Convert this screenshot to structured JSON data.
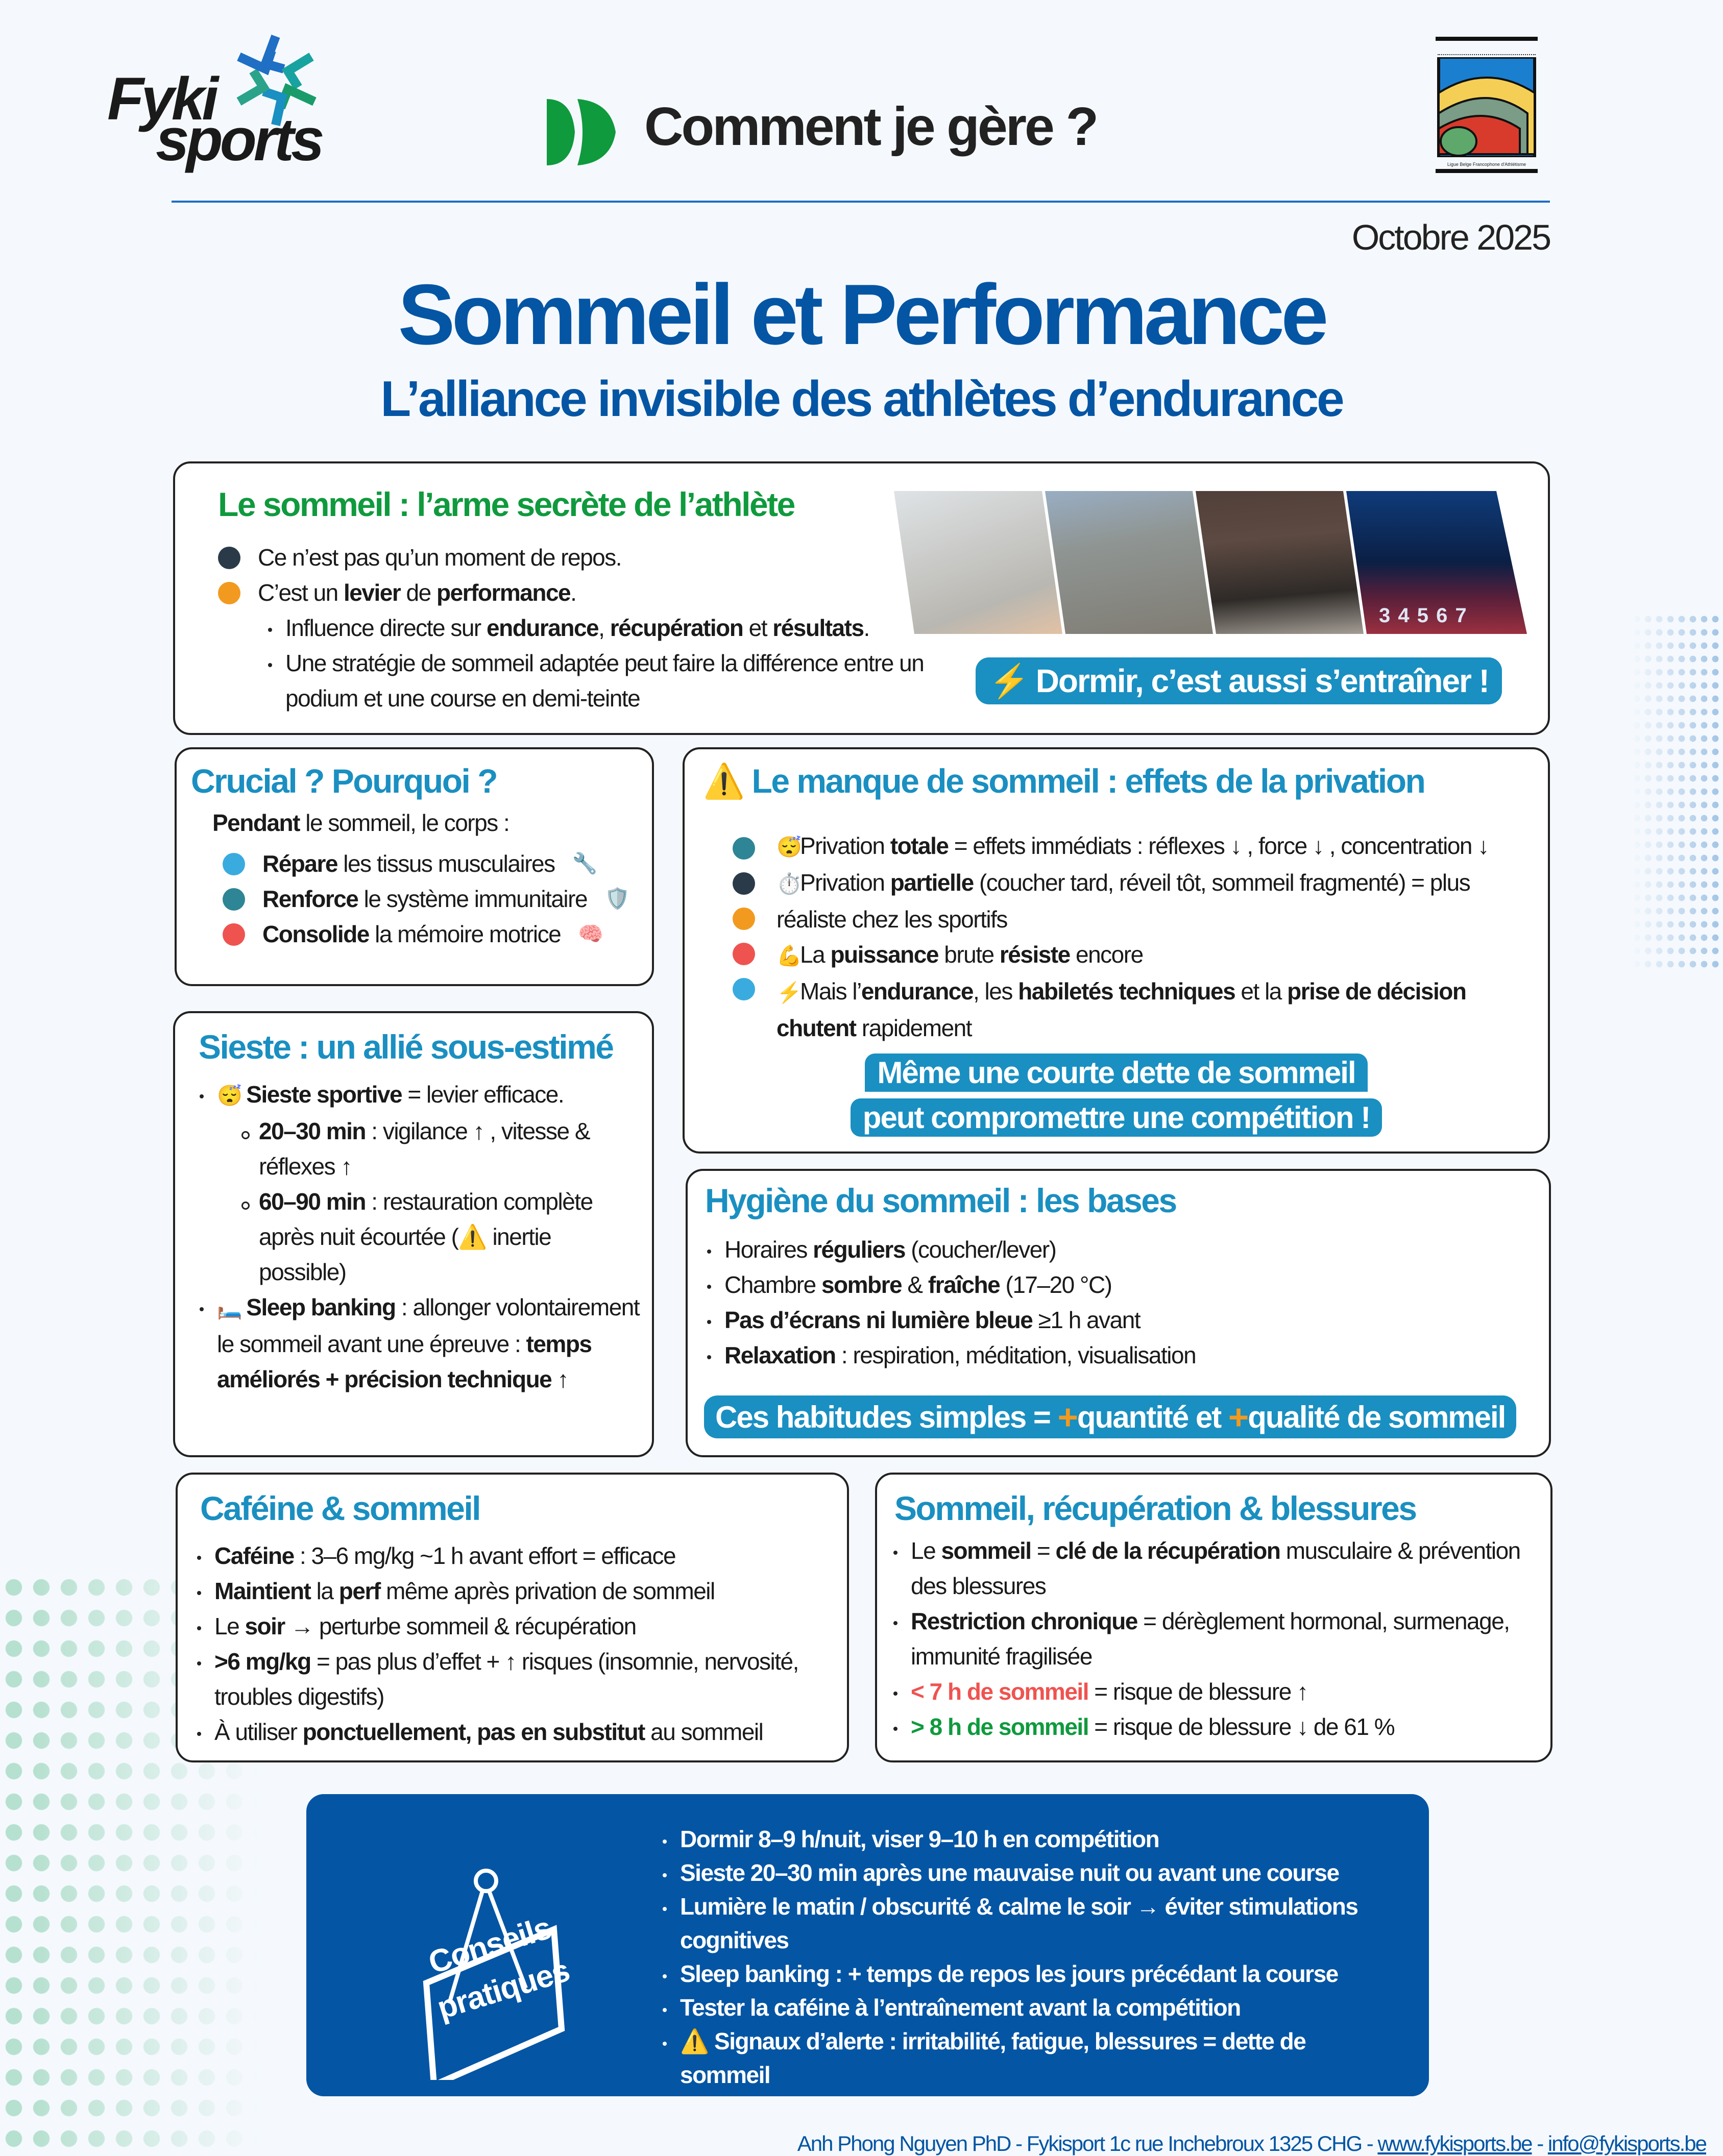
{
  "colors": {
    "title": "#0455a4",
    "heading": "#1a8fc1",
    "green": "#0f9a3d",
    "callout": "#1a8fc1",
    "advice_bg": "#0455a4",
    "dark": "#2b3a48",
    "orange": "#f29a1f",
    "teal": "#2e8595",
    "sky": "#3aabdf",
    "red": "#ef5350",
    "plus": "#f29a1f"
  },
  "header": {
    "logo_line1": "Fyki",
    "logo_line2": "sports",
    "tagline": "Comment je gère ?",
    "partner_logo_caption": "Ligue Belge Francophone d'Athlétisme",
    "date": "Octobre 2025"
  },
  "title": "Sommeil et Performance",
  "subtitle": "L’alliance invisible des athlètes d’endurance",
  "intro": {
    "title": "Le sommeil : l’arme secrète de l’athlète",
    "bullets": [
      [
        {
          "t": "Ce n’est pas qu’un moment de repos."
        }
      ],
      [
        {
          "t": "C’est un "
        },
        {
          "t": "levier",
          "b": true
        },
        {
          "t": " de "
        },
        {
          "t": "performance",
          "b": true
        },
        {
          "t": "."
        }
      ]
    ],
    "sub": [
      [
        {
          "t": "Influence directe sur "
        },
        {
          "t": "endurance",
          "b": true
        },
        {
          "t": ", "
        },
        {
          "t": "récupération",
          "b": true
        },
        {
          "t": " et "
        },
        {
          "t": "résultats",
          "b": true
        },
        {
          "t": "."
        }
      ],
      [
        {
          "t": "Une stratégie de sommeil adaptée peut faire la différence entre un podium et une course en demi-teinte"
        }
      ]
    ],
    "callout_icon": "⚡",
    "callout": "Dormir, c’est aussi s’entraîner !",
    "photo_track_numbers": "3 4 5 6 7"
  },
  "crucial": {
    "title": "Crucial ? Pourquoi ?",
    "intro": [
      {
        "t": "Pendant",
        "b": true
      },
      {
        "t": " le sommeil, le corps :"
      }
    ],
    "items": [
      {
        "text": [
          {
            "t": "Répare",
            "b": true
          },
          {
            "t": " les tissus musculaires"
          }
        ],
        "emoji": "🔧"
      },
      {
        "text": [
          {
            "t": "Renforce",
            "b": true
          },
          {
            "t": " le système immunitaire"
          }
        ],
        "emoji": "🛡️"
      },
      {
        "text": [
          {
            "t": "Consolide",
            "b": true
          },
          {
            "t": " la mémoire motrice"
          }
        ],
        "emoji": "🧠"
      }
    ]
  },
  "privation": {
    "title_icon": "⚠️",
    "title": "Le manque de sommeil : effets de la privation",
    "items": [
      {
        "emoji": "😴",
        "text": [
          {
            "t": "Privation "
          },
          {
            "t": "totale",
            "b": true
          },
          {
            "t": " = effets immédiats : réflexes ↓ , force ↓ , concentration ↓"
          }
        ]
      },
      {
        "emoji": "⏱️",
        "text": [
          {
            "t": "Privation "
          },
          {
            "t": "partielle",
            "b": true
          },
          {
            "t": " (coucher tard, réveil tôt, sommeil fragmenté) = plus réaliste chez les sportifs"
          }
        ]
      },
      {
        "emoji": "💪",
        "text": [
          {
            "t": "La "
          },
          {
            "t": "puissance",
            "b": true
          },
          {
            "t": " brute "
          },
          {
            "t": "résiste",
            "b": true
          },
          {
            "t": " encore"
          }
        ]
      },
      {
        "emoji": "⚡",
        "text": [
          {
            "t": "Mais l’"
          },
          {
            "t": "endurance",
            "b": true
          },
          {
            "t": ", les "
          },
          {
            "t": "habiletés techniques",
            "b": true
          },
          {
            "t": " et la "
          },
          {
            "t": "prise de décision",
            "b": true
          },
          {
            "t": " "
          },
          {
            "t": "chutent",
            "b": true
          },
          {
            "t": " rapidement"
          }
        ]
      }
    ],
    "callout_line1": "Même une courte dette de sommeil",
    "callout_line2": "peut compromettre une compétition !"
  },
  "sieste": {
    "title": "Sieste : un allié sous-estimé",
    "items": [
      {
        "emoji": "😴",
        "text": [
          {
            "t": "Sieste sportive",
            "b": true
          },
          {
            "t": " = levier efficace."
          }
        ],
        "sub": [
          [
            {
              "t": "20–30 min",
              "b": true
            },
            {
              "t": " : vigilance ↑ , vitesse & réflexes ↑"
            }
          ],
          [
            {
              "t": "60–90 min",
              "b": true
            },
            {
              "t": " : restauration complète après nuit écourtée (⚠️ inertie possible)"
            }
          ]
        ]
      },
      {
        "emoji": "🛏️",
        "text": [
          {
            "t": "Sleep banking",
            "b": true
          },
          {
            "t": " : allonger volontairement le sommeil avant une épreuve : "
          },
          {
            "t": "temps améliorés + précision technique",
            "b": true
          },
          {
            "t": " ↑"
          }
        ]
      }
    ]
  },
  "hygiene": {
    "title": "Hygiène du sommeil : les bases",
    "items": [
      [
        {
          "t": "Horaires "
        },
        {
          "t": "réguliers",
          "b": true
        },
        {
          "t": " (coucher/lever)"
        }
      ],
      [
        {
          "t": "Chambre "
        },
        {
          "t": "sombre",
          "b": true
        },
        {
          "t": " & "
        },
        {
          "t": "fraîche",
          "b": true
        },
        {
          "t": " (17–20 °C)"
        }
      ],
      [
        {
          "t": "Pas d’écrans ni lumière bleue",
          "b": true
        },
        {
          "t": " ≥1 h avant"
        }
      ],
      [
        {
          "t": "Relaxation",
          "b": true
        },
        {
          "t": " : respiration, méditation, visualisation"
        }
      ]
    ],
    "callout": [
      {
        "t": "Ces habitudes simples = "
      },
      {
        "t": "+",
        "c": "plus"
      },
      {
        "t": "quantité et "
      },
      {
        "t": "+",
        "c": "plus"
      },
      {
        "t": "qualité de sommeil"
      }
    ]
  },
  "cafeine": {
    "title": "Caféine & sommeil",
    "items": [
      [
        {
          "t": "Caféine",
          "b": true
        },
        {
          "t": " : 3–6 mg/kg ~1 h avant effort = efficace"
        }
      ],
      [
        {
          "t": "Maintient",
          "b": true
        },
        {
          "t": " la "
        },
        {
          "t": "perf",
          "b": true
        },
        {
          "t": " même après privation de sommeil"
        }
      ],
      [
        {
          "t": "Le "
        },
        {
          "t": "soir",
          "b": true
        },
        {
          "t": " → perturbe sommeil & récupération"
        }
      ],
      [
        {
          "t": ">6 mg/kg",
          "b": true
        },
        {
          "t": " = pas plus d’effet + ↑ risques (insomnie, nervosité, troubles digestifs)"
        }
      ],
      [
        {
          "t": "À utiliser "
        },
        {
          "t": "ponctuellement, pas en substitut",
          "b": true
        },
        {
          "t": " au sommeil"
        }
      ]
    ]
  },
  "blessures": {
    "title": "Sommeil, récupération & blessures",
    "items": [
      [
        {
          "t": "Le "
        },
        {
          "t": "sommeil",
          "b": true
        },
        {
          "t": " = "
        },
        {
          "t": "clé de la récupération",
          "b": true
        },
        {
          "t": " musculaire & prévention des blessures"
        }
      ],
      [
        {
          "t": "Restriction chronique",
          "b": true
        },
        {
          "t": " = dérèglement hormonal, surmenage, immunité fragilisée"
        }
      ],
      [
        {
          "t": "< 7 h de sommeil",
          "b": true,
          "c": "red"
        },
        {
          "t": " = risque de blessure ↑"
        }
      ],
      [
        {
          "t": "> 8 h de sommeil",
          "b": true,
          "c": "green"
        },
        {
          "t": " = risque de blessure ↓ de 61 %"
        }
      ]
    ]
  },
  "conseils": {
    "sign_line1": "Conseils",
    "sign_line2": "pratiques",
    "items": [
      "Dormir 8–9 h/nuit, viser 9–10 h en compétition",
      "Sieste 20–30 min après une mauvaise nuit ou avant une course",
      "Lumière le matin / obscurité & calme le soir → éviter stimulations cognitives",
      "Sleep banking : + temps de repos les jours précédant la course",
      "Tester la caféine à l’entraînement avant la compétition",
      "⚠️ Signaux d’alerte : irritabilité, fatigue, blessures = dette de sommeil"
    ]
  },
  "footer": {
    "text": "Anh Phong Nguyen PhD - Fykisport 1c rue Inchebroux 1325 CHG - ",
    "website": "www.fykisports.be",
    "sep": " - ",
    "email": "info@fykisports.be"
  }
}
